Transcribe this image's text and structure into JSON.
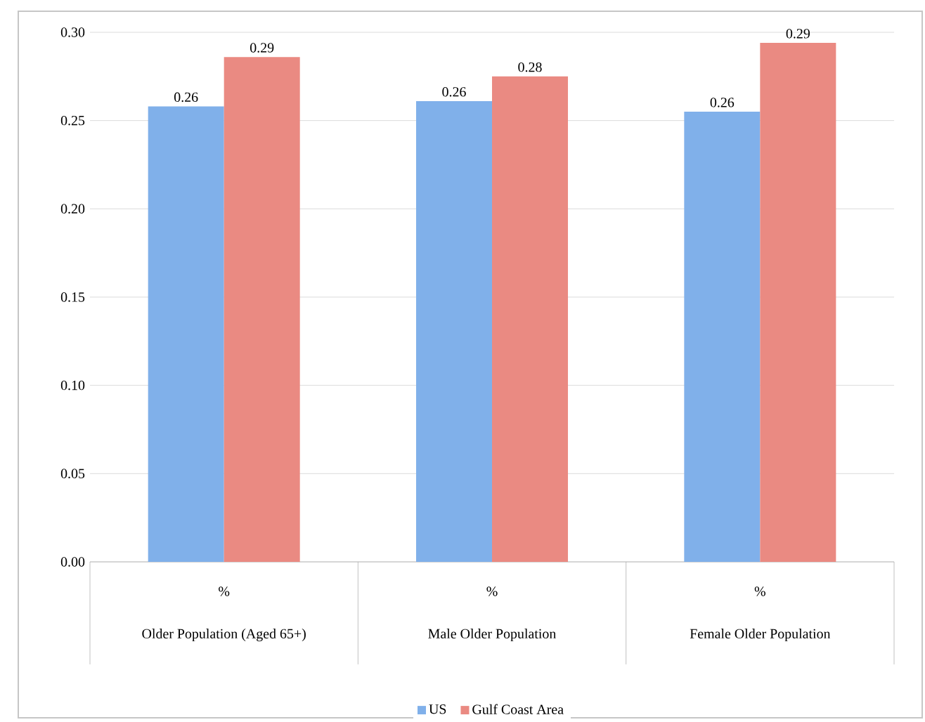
{
  "chart_data": {
    "type": "bar",
    "categories": [
      "Older Population (Aged 65+)",
      "Male Older Population",
      "Female Older Population"
    ],
    "series": [
      {
        "name": "US",
        "color": "#80b0ea",
        "values": [
          0.258,
          0.261,
          0.255
        ],
        "value_labels": [
          "0.26",
          "0.26",
          "0.26"
        ]
      },
      {
        "name": "Gulf Coast Area",
        "color": "#ea8a82",
        "values": [
          0.286,
          0.275,
          0.294
        ],
        "value_labels": [
          "0.29",
          "0.28",
          "0.29"
        ]
      }
    ],
    "annotations": [
      "%",
      "%",
      "%"
    ],
    "ylim": [
      0,
      0.3
    ],
    "yticks": [
      {
        "value": 0,
        "label": "0.00"
      },
      0.05,
      {
        "value": 0.1,
        "label": "0.10"
      },
      0.15,
      {
        "value": 0.2,
        "label": "0.20"
      },
      0.25,
      {
        "value": 0.3,
        "label": "0.30"
      }
    ],
    "grid": "y",
    "legend": "bottom"
  }
}
